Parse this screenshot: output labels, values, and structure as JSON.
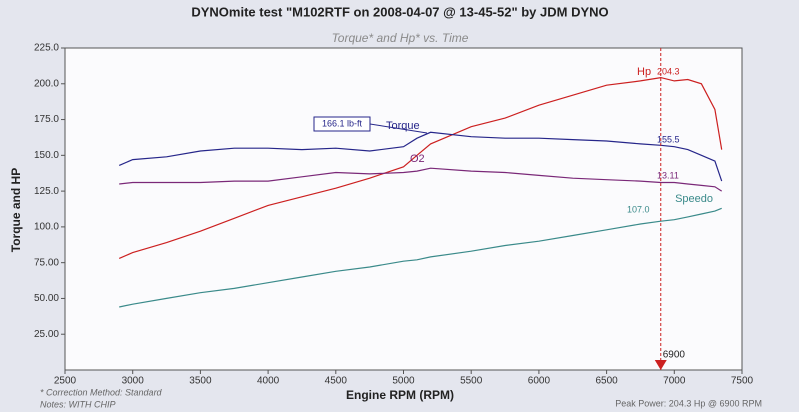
{
  "chart_data": {
    "type": "line",
    "title": "DYNOmite test \"M102RTF on 2008-04-07 @ 13-45-52\" by JDM DYNO",
    "subtitle": "Torque* and Hp* vs. Time",
    "x_label": "Engine RPM (RPM)",
    "y_label": "Torque and HP",
    "x": [
      2900,
      3000,
      3250,
      3500,
      3750,
      4000,
      4250,
      4500,
      4750,
      5000,
      5100,
      5200,
      5500,
      5750,
      6000,
      6250,
      6500,
      6750,
      6900,
      7000,
      7100,
      7200,
      7300,
      7350
    ],
    "series": [
      {
        "name": "Hp",
        "color": "#cc2020",
        "values": [
          78,
          82,
          89,
          97,
          106,
          115,
          121,
          127,
          134,
          142,
          150,
          158,
          170,
          176,
          185,
          192,
          199,
          202,
          204.3,
          202,
          203,
          200,
          182,
          154
        ]
      },
      {
        "name": "Torque",
        "color": "#26268a",
        "values": [
          143,
          147,
          149,
          153,
          155,
          155,
          154,
          155,
          153,
          156,
          162,
          166.1,
          163,
          162,
          162,
          161,
          160,
          158,
          157,
          156,
          154,
          150,
          146,
          132
        ]
      },
      {
        "name": "O2",
        "color": "#7a2878",
        "values": [
          130,
          131,
          131,
          131,
          132,
          132,
          135,
          138,
          137,
          138,
          139,
          141,
          139,
          138,
          136,
          134,
          133,
          132,
          131,
          131,
          130,
          129,
          128,
          125
        ]
      },
      {
        "name": "Speedo",
        "color": "#3a8a8a",
        "values": [
          44,
          46,
          50,
          54,
          57,
          61,
          65,
          69,
          72,
          76,
          77,
          79,
          83,
          87,
          90,
          94,
          98,
          102,
          104,
          105,
          107,
          109,
          111,
          113
        ]
      }
    ],
    "xlim": [
      2500,
      7500
    ],
    "ylim": [
      0,
      225
    ],
    "xticks": [
      2500,
      3000,
      3500,
      4000,
      4500,
      5000,
      5500,
      6000,
      6500,
      7000,
      7500
    ],
    "yticks": [
      {
        "value": 25,
        "label": "25.00"
      },
      {
        "value": 50,
        "label": "50.00"
      },
      {
        "value": 75,
        "label": "75.00"
      },
      {
        "value": 100,
        "label": "100.0"
      },
      {
        "value": 125,
        "label": "125.0"
      },
      {
        "value": 150,
        "label": "150.0"
      },
      {
        "value": 175,
        "label": "175.0"
      },
      {
        "value": 200,
        "label": "200.0"
      },
      {
        "value": 225,
        "label": "225.0"
      }
    ],
    "grid": false,
    "marker": 6900,
    "annotations": [
      "204.3",
      "155.5",
      "13.11",
      "107.0",
      "166.1 lb-ft"
    ],
    "footer_left": [
      "* Correction Method: Standard",
      "Notes: WITH CHIP"
    ],
    "footer_right": "Peak Power: 204.3 Hp @ 6900 RPM"
  }
}
